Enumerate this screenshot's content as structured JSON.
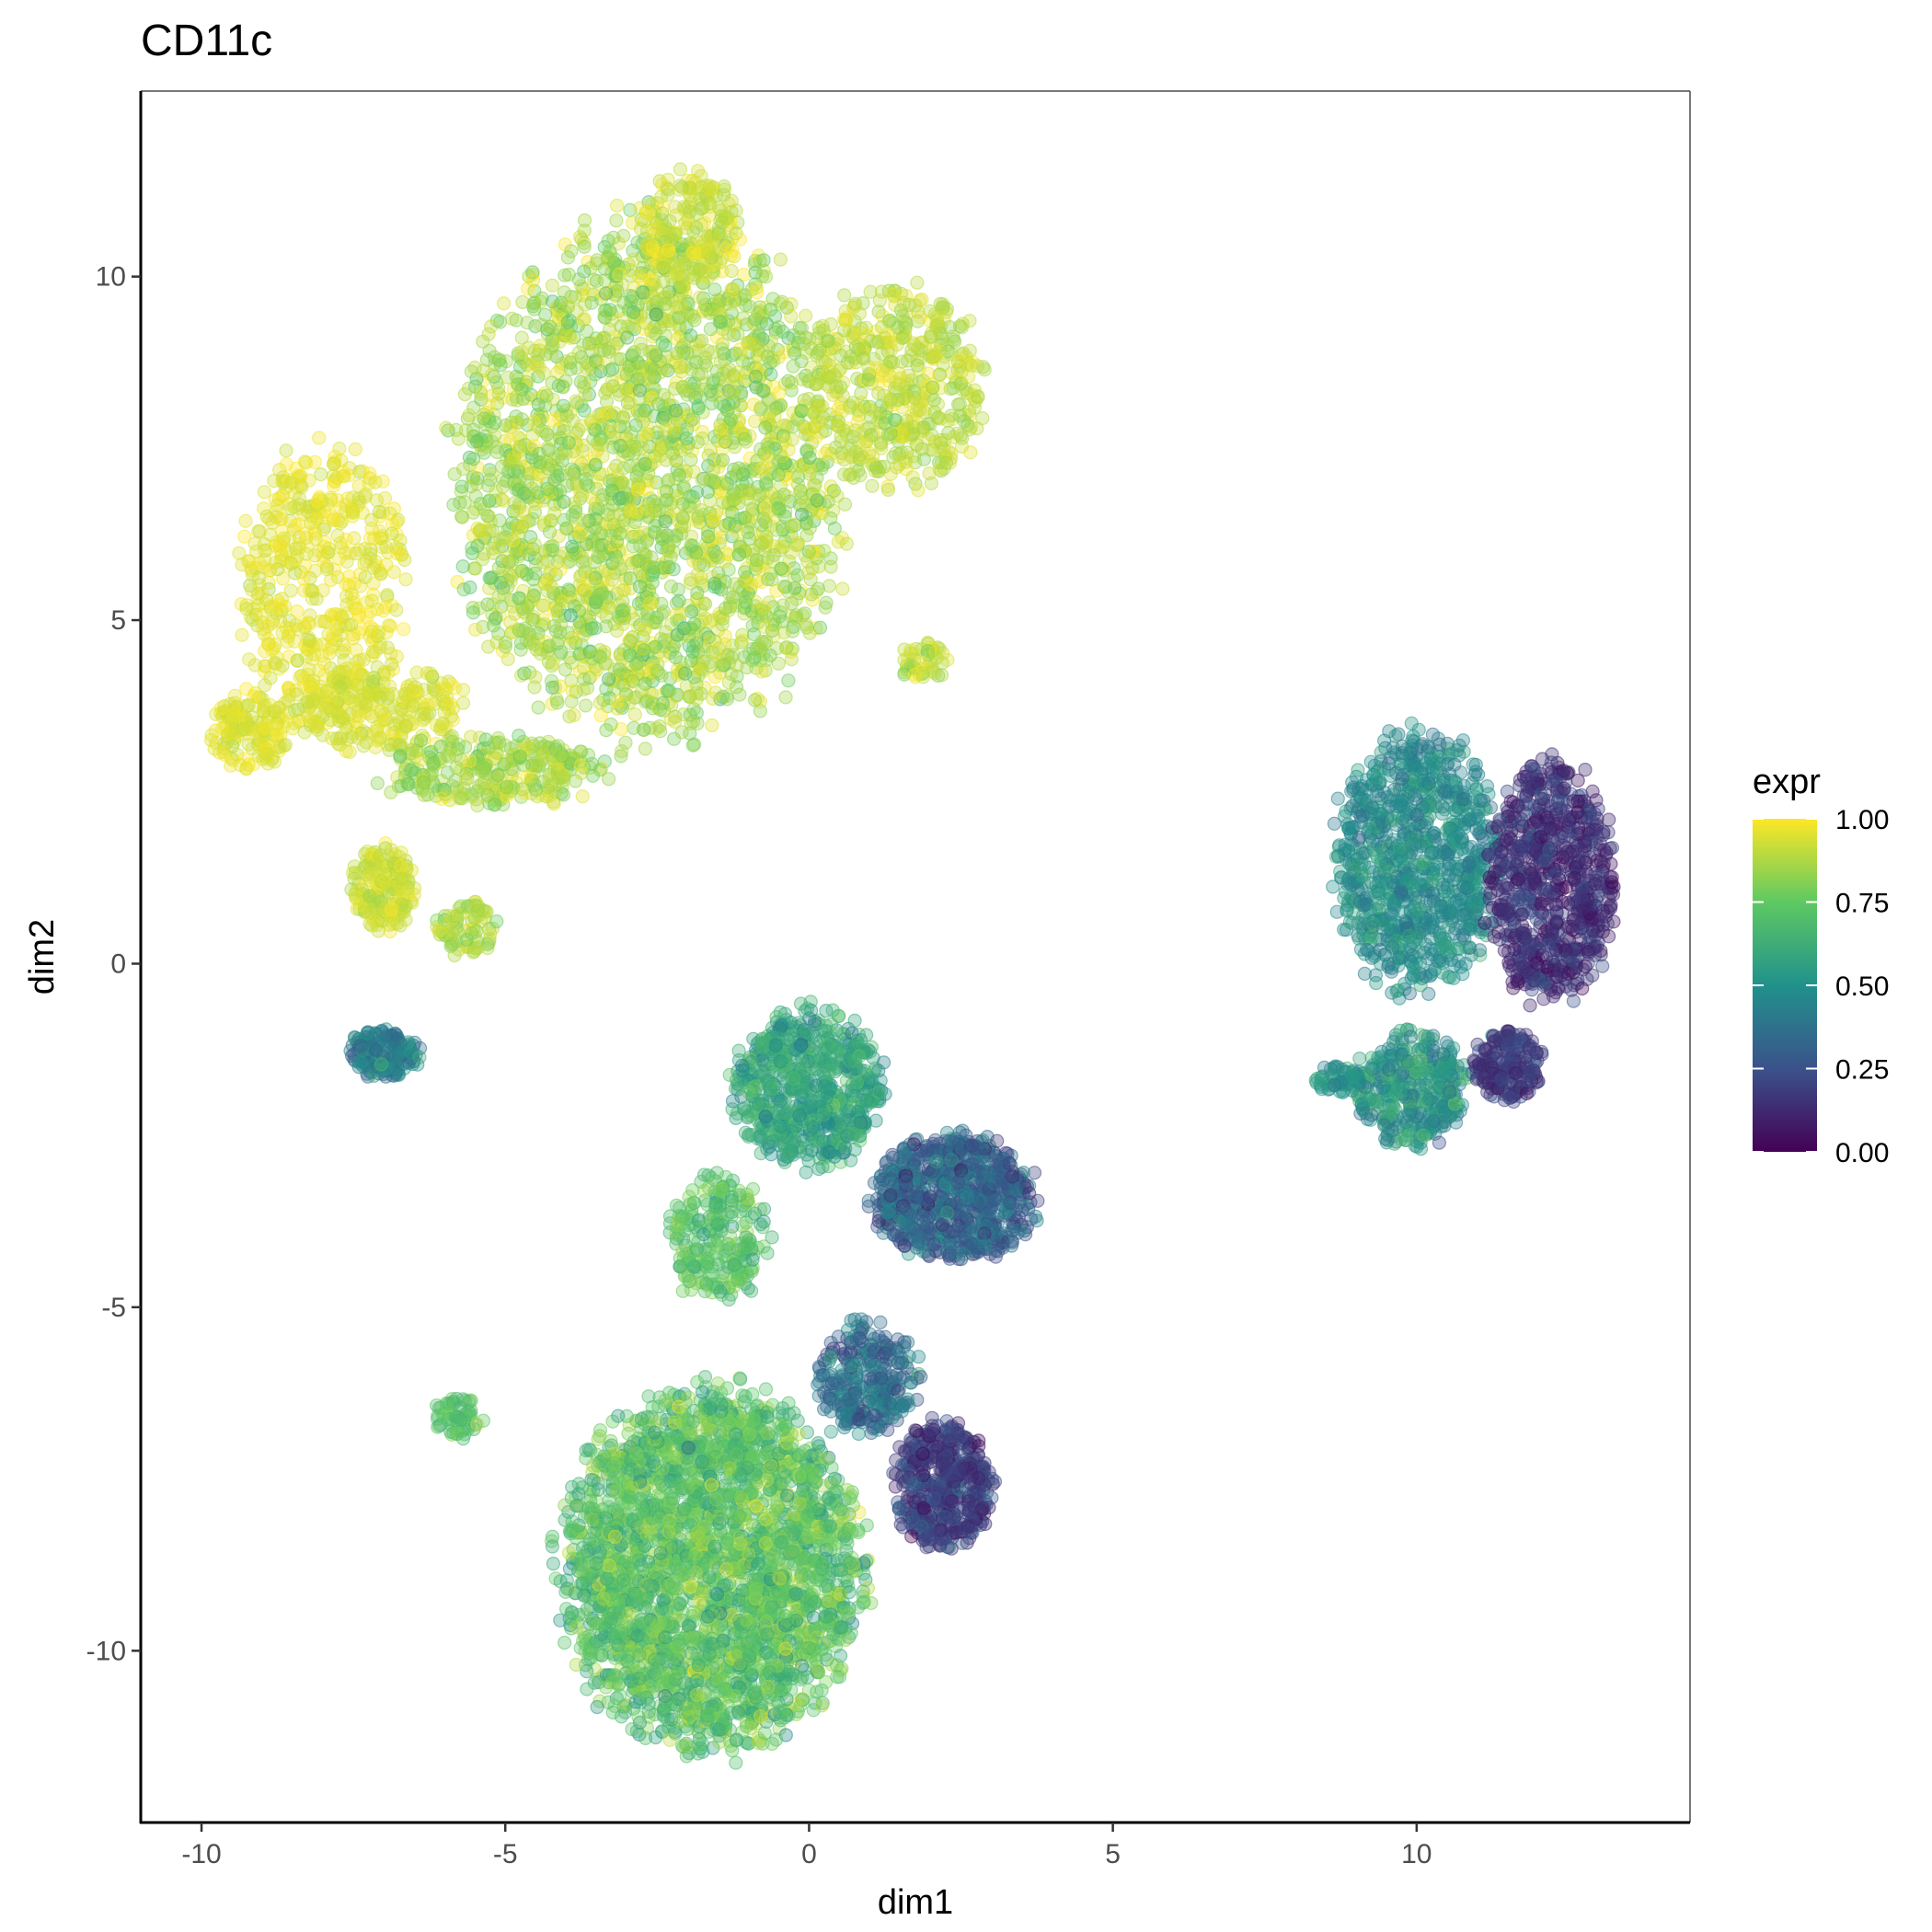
{
  "chart_data": {
    "type": "scatter",
    "title": "CD11c",
    "xlabel": "dim1",
    "ylabel": "dim2",
    "xlim": [
      -11,
      14.5
    ],
    "ylim": [
      -12.5,
      12.7
    ],
    "x_ticks": [
      -10,
      -5,
      0,
      5,
      10
    ],
    "x_tick_labels": [
      "-10",
      "-5",
      "0",
      "5",
      "10"
    ],
    "y_ticks": [
      -10,
      -5,
      0,
      5,
      10
    ],
    "y_tick_labels": [
      "-10",
      "-5",
      "0",
      "5",
      "10"
    ],
    "grid": false,
    "point_alpha": 0.35,
    "color_scale": "viridis",
    "colors": [
      "#440154",
      "#3b528b",
      "#21918c",
      "#5ec962",
      "#fde725"
    ],
    "legend": {
      "title": "expr",
      "position": "right",
      "ticks": [
        1.0,
        0.75,
        0.5,
        0.25,
        0.0
      ],
      "labels": [
        "1.00",
        "0.75",
        "0.50",
        "0.25",
        "0.00"
      ]
    },
    "clusters": [
      {
        "cx": -2.6,
        "cy": 7.0,
        "rx": 3.1,
        "ry": 3.6,
        "n": 2600,
        "expr": [
          0.86,
          0.08
        ]
      },
      {
        "cx": -8.0,
        "cy": 5.5,
        "rx": 1.3,
        "ry": 2.0,
        "n": 500,
        "expr": [
          0.96,
          0.03
        ]
      },
      {
        "cx": -7.1,
        "cy": 3.7,
        "rx": 1.5,
        "ry": 0.6,
        "n": 250,
        "expr": [
          0.94,
          0.03
        ]
      },
      {
        "cx": -9.2,
        "cy": 3.4,
        "rx": 0.6,
        "ry": 0.6,
        "n": 150,
        "expr": [
          0.95,
          0.03
        ]
      },
      {
        "cx": 1.4,
        "cy": 8.4,
        "rx": 1.5,
        "ry": 1.4,
        "n": 500,
        "expr": [
          0.9,
          0.05
        ]
      },
      {
        "cx": -2.0,
        "cy": 10.7,
        "rx": 0.8,
        "ry": 0.8,
        "n": 200,
        "expr": [
          0.92,
          0.04
        ]
      },
      {
        "cx": -5.2,
        "cy": 2.8,
        "rx": 1.8,
        "ry": 0.5,
        "n": 300,
        "expr": [
          0.86,
          0.06
        ]
      },
      {
        "cx": -7.0,
        "cy": 1.1,
        "rx": 0.5,
        "ry": 0.6,
        "n": 180,
        "expr": [
          0.92,
          0.04
        ]
      },
      {
        "cx": -5.6,
        "cy": 0.5,
        "rx": 0.5,
        "ry": 0.4,
        "n": 80,
        "expr": [
          0.88,
          0.05
        ]
      },
      {
        "cx": -7.0,
        "cy": -1.3,
        "rx": 0.55,
        "ry": 0.35,
        "n": 180,
        "expr": [
          0.42,
          0.08
        ]
      },
      {
        "cx": 1.9,
        "cy": 4.4,
        "rx": 0.4,
        "ry": 0.3,
        "n": 50,
        "expr": [
          0.9,
          0.05
        ]
      },
      {
        "cx": -1.6,
        "cy": -8.8,
        "rx": 2.4,
        "ry": 2.5,
        "n": 3000,
        "expr": [
          0.72,
          0.1
        ]
      },
      {
        "cx": 2.2,
        "cy": -7.6,
        "rx": 0.8,
        "ry": 0.9,
        "n": 500,
        "expr": [
          0.18,
          0.08
        ]
      },
      {
        "cx": 1.0,
        "cy": -6.0,
        "rx": 0.8,
        "ry": 0.8,
        "n": 300,
        "expr": [
          0.35,
          0.1
        ]
      },
      {
        "cx": 2.4,
        "cy": -3.4,
        "rx": 1.3,
        "ry": 0.9,
        "n": 800,
        "expr": [
          0.32,
          0.1
        ]
      },
      {
        "cx": 0.0,
        "cy": -1.8,
        "rx": 1.2,
        "ry": 1.1,
        "n": 700,
        "expr": [
          0.58,
          0.08
        ]
      },
      {
        "cx": -1.5,
        "cy": -4.0,
        "rx": 0.8,
        "ry": 0.9,
        "n": 250,
        "expr": [
          0.72,
          0.08
        ]
      },
      {
        "cx": -5.8,
        "cy": -6.6,
        "rx": 0.4,
        "ry": 0.3,
        "n": 60,
        "expr": [
          0.72,
          0.05
        ]
      },
      {
        "cx": 10.0,
        "cy": 1.5,
        "rx": 1.3,
        "ry": 1.8,
        "n": 1000,
        "expr": [
          0.48,
          0.07
        ]
      },
      {
        "cx": 12.2,
        "cy": 1.2,
        "rx": 1.0,
        "ry": 1.7,
        "n": 800,
        "expr": [
          0.15,
          0.07
        ]
      },
      {
        "cx": 9.9,
        "cy": -1.8,
        "rx": 0.9,
        "ry": 0.8,
        "n": 400,
        "expr": [
          0.52,
          0.1
        ]
      },
      {
        "cx": 11.5,
        "cy": -1.5,
        "rx": 0.6,
        "ry": 0.5,
        "n": 200,
        "expr": [
          0.18,
          0.06
        ]
      },
      {
        "cx": 8.7,
        "cy": -1.7,
        "rx": 0.4,
        "ry": 0.2,
        "n": 60,
        "expr": [
          0.5,
          0.05
        ]
      }
    ]
  }
}
